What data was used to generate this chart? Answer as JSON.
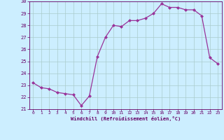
{
  "x": [
    0,
    1,
    2,
    3,
    4,
    5,
    6,
    7,
    8,
    9,
    10,
    11,
    12,
    13,
    14,
    15,
    16,
    17,
    18,
    19,
    20,
    21,
    22,
    23
  ],
  "y": [
    23.2,
    22.8,
    22.7,
    22.4,
    22.3,
    22.2,
    21.3,
    22.1,
    25.4,
    27.0,
    28.0,
    27.9,
    28.4,
    28.4,
    28.6,
    29.0,
    29.8,
    29.5,
    29.5,
    29.3,
    29.3,
    28.8,
    25.3,
    24.8
  ],
  "line_color": "#993399",
  "marker": "D",
  "marker_size": 2.0,
  "bg_color": "#cceeff",
  "grid_color": "#aacccc",
  "xlabel": "Windchill (Refroidissement éolien,°C)",
  "xlabel_color": "#660066",
  "tick_color": "#660066",
  "ylim": [
    21,
    30
  ],
  "xlim": [
    -0.5,
    23.5
  ],
  "yticks": [
    21,
    22,
    23,
    24,
    25,
    26,
    27,
    28,
    29,
    30
  ],
  "xticks": [
    0,
    1,
    2,
    3,
    4,
    5,
    6,
    7,
    8,
    9,
    10,
    11,
    12,
    13,
    14,
    15,
    16,
    17,
    18,
    19,
    20,
    21,
    22,
    23
  ]
}
